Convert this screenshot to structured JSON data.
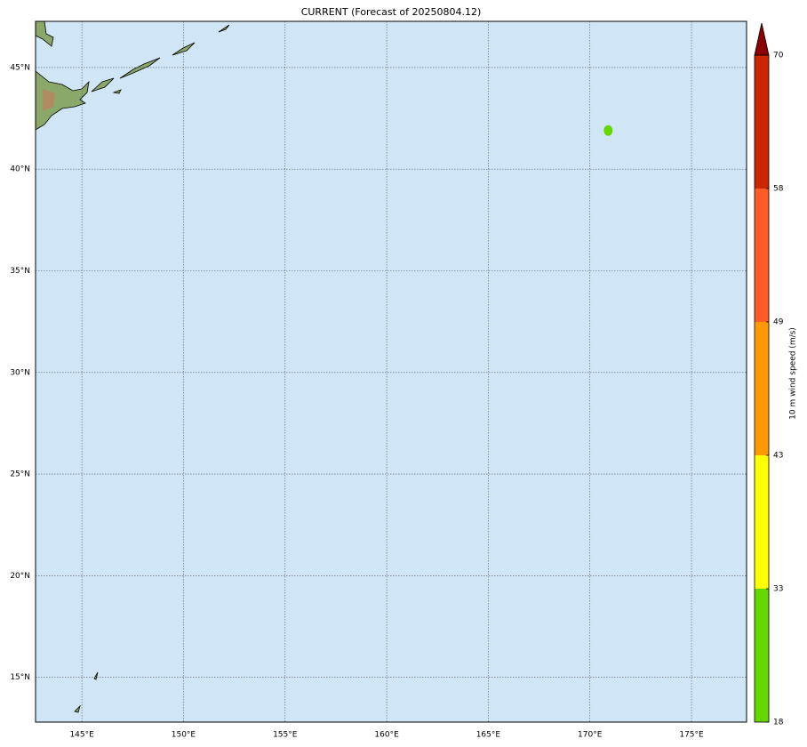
{
  "map": {
    "title": "CURRENT (Forecast of 20250804.12)",
    "lon_lim": [
      142.72,
      177.71
    ],
    "lat_lim": [
      12.8,
      47.27
    ],
    "lon_ticks": [
      {
        "value": 145,
        "label": "145°E"
      },
      {
        "value": 150,
        "label": "150°E"
      },
      {
        "value": 155,
        "label": "155°E"
      },
      {
        "value": 160,
        "label": "160°E"
      },
      {
        "value": 165,
        "label": "165°E"
      },
      {
        "value": 170,
        "label": "170°E"
      },
      {
        "value": 175,
        "label": "175°E"
      }
    ],
    "lat_ticks": [
      {
        "value": 15,
        "label": "15°N"
      },
      {
        "value": 20,
        "label": "20°N"
      },
      {
        "value": 25,
        "label": "25°N"
      },
      {
        "value": 30,
        "label": "30°N"
      },
      {
        "value": 35,
        "label": "35°N"
      },
      {
        "value": 40,
        "label": "40°N"
      },
      {
        "value": 45,
        "label": "45°N"
      }
    ],
    "grid": true,
    "ocean_color": "#d0e6f6",
    "areas": [
      {
        "lon": 170.9,
        "lat": 41.9,
        "color": "#66d600"
      }
    ],
    "colorbar": {
      "label": "10 m wind speed (m/s)",
      "ticks": [
        18,
        33,
        43,
        49,
        58,
        70
      ],
      "colors": [
        "#66d600",
        "#ffff00",
        "#ff9900",
        "#ff5c26",
        "#cc2600"
      ],
      "extend_color": "#8b0000"
    }
  }
}
